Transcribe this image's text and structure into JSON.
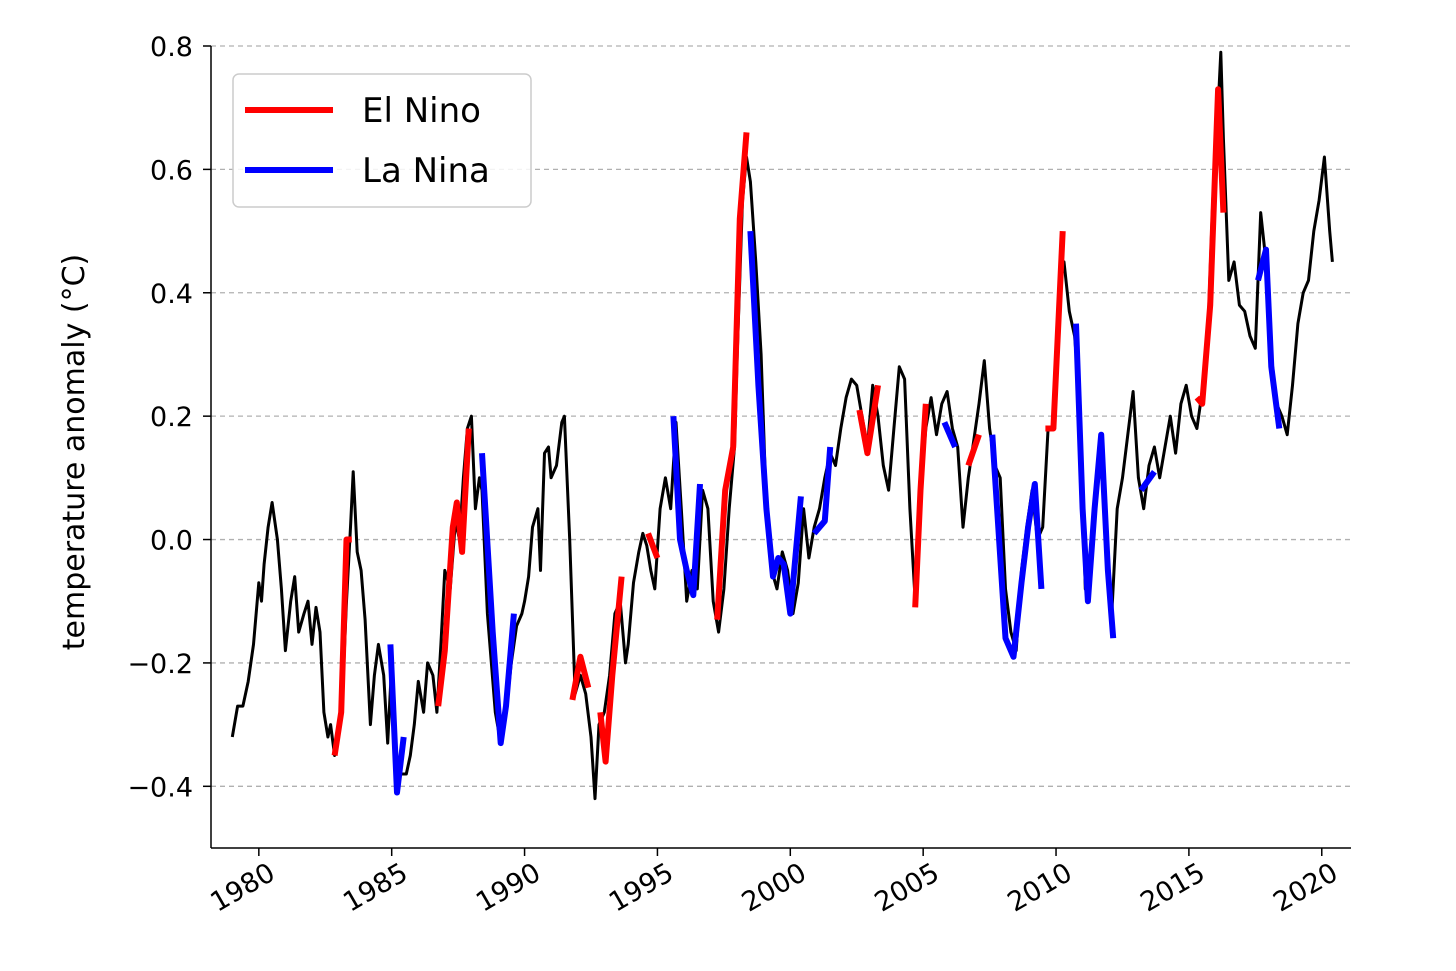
{
  "chart_data": {
    "type": "line",
    "title": "",
    "xlabel": "",
    "ylabel": "temperature anomaly (°C)",
    "xlim": [
      1978.2,
      2021.1
    ],
    "ylim": [
      -0.5,
      0.8
    ],
    "x_ticks": [
      1980,
      1985,
      1990,
      1995,
      2000,
      2005,
      2010,
      2015,
      2020
    ],
    "y_ticks": [
      -0.4,
      -0.2,
      0.0,
      0.2,
      0.4,
      0.6,
      0.8
    ],
    "y_tick_labels": [
      "−0.4",
      "−0.2",
      "0.0",
      "0.2",
      "0.4",
      "0.6",
      "0.8"
    ],
    "grid": "horizontal-dashed",
    "legend_position": "top-left",
    "colors": {
      "base": "#000000",
      "el_nino": "#ff0000",
      "la_nina": "#0000ff",
      "grid": "#b0b0b0"
    },
    "base_series": {
      "name": "",
      "points": [
        [
          1979.0,
          -0.32
        ],
        [
          1979.2,
          -0.27
        ],
        [
          1979.4,
          -0.27
        ],
        [
          1979.6,
          -0.23
        ],
        [
          1979.8,
          -0.17
        ],
        [
          1980.0,
          -0.07
        ],
        [
          1980.1,
          -0.1
        ],
        [
          1980.2,
          -0.04
        ],
        [
          1980.35,
          0.02
        ],
        [
          1980.5,
          0.06
        ],
        [
          1980.7,
          0.0
        ],
        [
          1980.85,
          -0.08
        ],
        [
          1981.0,
          -0.18
        ],
        [
          1981.2,
          -0.1
        ],
        [
          1981.35,
          -0.06
        ],
        [
          1981.5,
          -0.15
        ],
        [
          1981.7,
          -0.12
        ],
        [
          1981.85,
          -0.1
        ],
        [
          1982.0,
          -0.17
        ],
        [
          1982.15,
          -0.11
        ],
        [
          1982.3,
          -0.15
        ],
        [
          1982.45,
          -0.28
        ],
        [
          1982.6,
          -0.32
        ],
        [
          1982.7,
          -0.3
        ],
        [
          1982.85,
          -0.35
        ],
        [
          1983.0,
          -0.32
        ],
        [
          1983.15,
          -0.25
        ],
        [
          1983.3,
          -0.1
        ],
        [
          1983.45,
          0.02
        ],
        [
          1983.55,
          0.11
        ],
        [
          1983.7,
          -0.02
        ],
        [
          1983.85,
          -0.05
        ],
        [
          1984.0,
          -0.13
        ],
        [
          1984.2,
          -0.3
        ],
        [
          1984.35,
          -0.22
        ],
        [
          1984.5,
          -0.17
        ],
        [
          1984.7,
          -0.22
        ],
        [
          1984.85,
          -0.33
        ],
        [
          1985.0,
          -0.2
        ],
        [
          1985.15,
          -0.4
        ],
        [
          1985.35,
          -0.38
        ],
        [
          1985.55,
          -0.38
        ],
        [
          1985.7,
          -0.35
        ],
        [
          1985.85,
          -0.3
        ],
        [
          1986.0,
          -0.23
        ],
        [
          1986.2,
          -0.28
        ],
        [
          1986.35,
          -0.2
        ],
        [
          1986.55,
          -0.22
        ],
        [
          1986.7,
          -0.28
        ],
        [
          1986.85,
          -0.17
        ],
        [
          1987.0,
          -0.05
        ],
        [
          1987.2,
          -0.08
        ],
        [
          1987.4,
          0.03
        ],
        [
          1987.55,
          0.0
        ],
        [
          1987.7,
          0.1
        ],
        [
          1987.85,
          0.18
        ],
        [
          1988.0,
          0.2
        ],
        [
          1988.15,
          0.05
        ],
        [
          1988.3,
          0.1
        ],
        [
          1988.4,
          0.08
        ],
        [
          1988.6,
          -0.12
        ],
        [
          1988.9,
          -0.28
        ],
        [
          1989.1,
          -0.33
        ],
        [
          1989.3,
          -0.28
        ],
        [
          1989.5,
          -0.2
        ],
        [
          1989.7,
          -0.14
        ],
        [
          1989.9,
          -0.12
        ],
        [
          1990.0,
          -0.1
        ],
        [
          1990.15,
          -0.06
        ],
        [
          1990.3,
          0.02
        ],
        [
          1990.5,
          0.05
        ],
        [
          1990.6,
          -0.05
        ],
        [
          1990.75,
          0.14
        ],
        [
          1990.9,
          0.15
        ],
        [
          1991.0,
          0.1
        ],
        [
          1991.2,
          0.12
        ],
        [
          1991.4,
          0.19
        ],
        [
          1991.5,
          0.2
        ],
        [
          1991.7,
          0.0
        ],
        [
          1991.9,
          -0.25
        ],
        [
          1992.1,
          -0.22
        ],
        [
          1992.3,
          -0.25
        ],
        [
          1992.5,
          -0.32
        ],
        [
          1992.65,
          -0.42
        ],
        [
          1992.8,
          -0.3
        ],
        [
          1993.0,
          -0.28
        ],
        [
          1993.2,
          -0.22
        ],
        [
          1993.4,
          -0.12
        ],
        [
          1993.6,
          -0.1
        ],
        [
          1993.8,
          -0.2
        ],
        [
          1993.9,
          -0.17
        ],
        [
          1994.1,
          -0.07
        ],
        [
          1994.3,
          -0.02
        ],
        [
          1994.45,
          0.01
        ],
        [
          1994.6,
          -0.01
        ],
        [
          1994.75,
          -0.05
        ],
        [
          1994.9,
          -0.08
        ],
        [
          1995.1,
          0.05
        ],
        [
          1995.3,
          0.1
        ],
        [
          1995.5,
          0.05
        ],
        [
          1995.7,
          0.19
        ],
        [
          1995.9,
          0.05
        ],
        [
          1996.1,
          -0.1
        ],
        [
          1996.3,
          -0.05
        ],
        [
          1996.5,
          -0.08
        ],
        [
          1996.7,
          0.08
        ],
        [
          1996.9,
          0.05
        ],
        [
          1997.1,
          -0.1
        ],
        [
          1997.3,
          -0.15
        ],
        [
          1997.5,
          -0.08
        ],
        [
          1997.7,
          0.05
        ],
        [
          1997.9,
          0.15
        ],
        [
          1998.0,
          0.3
        ],
        [
          1998.2,
          0.55
        ],
        [
          1998.35,
          0.62
        ],
        [
          1998.5,
          0.58
        ],
        [
          1998.7,
          0.45
        ],
        [
          1998.9,
          0.3
        ],
        [
          1999.1,
          0.05
        ],
        [
          1999.3,
          -0.05
        ],
        [
          1999.5,
          -0.08
        ],
        [
          1999.7,
          -0.02
        ],
        [
          1999.9,
          -0.05
        ],
        [
          2000.1,
          -0.12
        ],
        [
          2000.3,
          -0.07
        ],
        [
          2000.5,
          0.05
        ],
        [
          2000.7,
          -0.03
        ],
        [
          2000.9,
          0.02
        ],
        [
          2001.1,
          0.05
        ],
        [
          2001.3,
          0.1
        ],
        [
          2001.5,
          0.14
        ],
        [
          2001.7,
          0.12
        ],
        [
          2001.9,
          0.18
        ],
        [
          2002.1,
          0.23
        ],
        [
          2002.3,
          0.26
        ],
        [
          2002.5,
          0.25
        ],
        [
          2002.7,
          0.2
        ],
        [
          2002.9,
          0.15
        ],
        [
          2003.1,
          0.25
        ],
        [
          2003.3,
          0.2
        ],
        [
          2003.5,
          0.12
        ],
        [
          2003.7,
          0.08
        ],
        [
          2003.9,
          0.18
        ],
        [
          2004.1,
          0.28
        ],
        [
          2004.3,
          0.26
        ],
        [
          2004.5,
          0.05
        ],
        [
          2004.7,
          -0.1
        ],
        [
          2004.9,
          0.08
        ],
        [
          2005.1,
          0.18
        ],
        [
          2005.3,
          0.23
        ],
        [
          2005.5,
          0.17
        ],
        [
          2005.7,
          0.22
        ],
        [
          2005.9,
          0.24
        ],
        [
          2006.1,
          0.18
        ],
        [
          2006.3,
          0.15
        ],
        [
          2006.5,
          0.02
        ],
        [
          2006.7,
          0.1
        ],
        [
          2006.9,
          0.16
        ],
        [
          2007.1,
          0.22
        ],
        [
          2007.3,
          0.29
        ],
        [
          2007.5,
          0.18
        ],
        [
          2007.7,
          0.12
        ],
        [
          2007.9,
          0.1
        ],
        [
          2008.1,
          -0.08
        ],
        [
          2008.3,
          -0.15
        ],
        [
          2008.5,
          -0.18
        ],
        [
          2008.7,
          -0.05
        ],
        [
          2008.9,
          0.02
        ],
        [
          2009.1,
          0.08
        ],
        [
          2009.3,
          0.0
        ],
        [
          2009.5,
          0.02
        ],
        [
          2009.7,
          0.18
        ],
        [
          2009.9,
          0.18
        ],
        [
          2010.1,
          0.4
        ],
        [
          2010.3,
          0.45
        ],
        [
          2010.5,
          0.37
        ],
        [
          2010.7,
          0.33
        ],
        [
          2010.9,
          0.22
        ],
        [
          2011.1,
          -0.08
        ],
        [
          2011.3,
          -0.05
        ],
        [
          2011.5,
          0.08
        ],
        [
          2011.7,
          0.17
        ],
        [
          2011.9,
          0.0
        ],
        [
          2012.1,
          -0.12
        ],
        [
          2012.3,
          0.05
        ],
        [
          2012.5,
          0.1
        ],
        [
          2012.7,
          0.17
        ],
        [
          2012.9,
          0.24
        ],
        [
          2013.1,
          0.1
        ],
        [
          2013.3,
          0.05
        ],
        [
          2013.5,
          0.12
        ],
        [
          2013.7,
          0.15
        ],
        [
          2013.9,
          0.1
        ],
        [
          2014.1,
          0.15
        ],
        [
          2014.3,
          0.2
        ],
        [
          2014.5,
          0.14
        ],
        [
          2014.7,
          0.22
        ],
        [
          2014.9,
          0.25
        ],
        [
          2015.1,
          0.2
        ],
        [
          2015.3,
          0.18
        ],
        [
          2015.5,
          0.24
        ],
        [
          2015.7,
          0.32
        ],
        [
          2015.9,
          0.55
        ],
        [
          2016.1,
          0.7
        ],
        [
          2016.2,
          0.79
        ],
        [
          2016.3,
          0.65
        ],
        [
          2016.5,
          0.42
        ],
        [
          2016.7,
          0.45
        ],
        [
          2016.9,
          0.38
        ],
        [
          2017.1,
          0.37
        ],
        [
          2017.3,
          0.33
        ],
        [
          2017.5,
          0.31
        ],
        [
          2017.7,
          0.53
        ],
        [
          2017.9,
          0.45
        ],
        [
          2018.1,
          0.3
        ],
        [
          2018.3,
          0.22
        ],
        [
          2018.5,
          0.2
        ],
        [
          2018.7,
          0.17
        ],
        [
          2018.9,
          0.25
        ],
        [
          2019.1,
          0.35
        ],
        [
          2019.3,
          0.4
        ],
        [
          2019.5,
          0.42
        ],
        [
          2019.7,
          0.5
        ],
        [
          2019.9,
          0.55
        ],
        [
          2020.1,
          0.62
        ],
        [
          2020.3,
          0.5
        ],
        [
          2020.4,
          0.45
        ]
      ]
    },
    "highlight_series": [
      {
        "name": "El Nino",
        "segments": [
          [
            [
              1982.85,
              -0.35
            ],
            [
              1983.1,
              -0.28
            ],
            [
              1983.3,
              0.0
            ],
            [
              1983.5,
              0.0
            ]
          ],
          [
            [
              1986.75,
              -0.27
            ],
            [
              1987.0,
              -0.18
            ],
            [
              1987.3,
              0.02
            ],
            [
              1987.45,
              0.06
            ],
            [
              1987.65,
              -0.02
            ],
            [
              1987.9,
              0.18
            ]
          ],
          [
            [
              1991.8,
              -0.26
            ],
            [
              1992.1,
              -0.19
            ],
            [
              1992.4,
              -0.24
            ]
          ],
          [
            [
              1992.85,
              -0.28
            ],
            [
              1993.05,
              -0.36
            ],
            [
              1993.3,
              -0.22
            ],
            [
              1993.65,
              -0.06
            ]
          ],
          [
            [
              1994.65,
              0.01
            ],
            [
              1995.0,
              -0.03
            ]
          ],
          [
            [
              1997.25,
              -0.13
            ],
            [
              1997.55,
              0.08
            ],
            [
              1997.85,
              0.15
            ],
            [
              1998.1,
              0.52
            ],
            [
              1998.35,
              0.66
            ]
          ],
          [
            [
              2002.6,
              0.21
            ],
            [
              2002.9,
              0.14
            ],
            [
              2003.3,
              0.25
            ]
          ],
          [
            [
              2004.7,
              -0.11
            ],
            [
              2004.9,
              0.08
            ],
            [
              2005.1,
              0.22
            ]
          ],
          [
            [
              2006.7,
              0.12
            ],
            [
              2007.1,
              0.17
            ]
          ],
          [
            [
              2009.6,
              0.18
            ],
            [
              2009.9,
              0.18
            ],
            [
              2010.25,
              0.5
            ]
          ],
          [
            [
              2015.3,
              0.23
            ],
            [
              2015.5,
              0.22
            ],
            [
              2015.8,
              0.38
            ],
            [
              2016.1,
              0.73
            ],
            [
              2016.3,
              0.53
            ]
          ]
        ]
      },
      {
        "name": "La Nina",
        "segments": [
          [
            [
              1984.95,
              -0.17
            ],
            [
              1985.2,
              -0.41
            ],
            [
              1985.45,
              -0.32
            ]
          ],
          [
            [
              1988.4,
              0.14
            ],
            [
              1988.8,
              -0.15
            ],
            [
              1989.1,
              -0.33
            ],
            [
              1989.3,
              -0.27
            ],
            [
              1989.6,
              -0.12
            ]
          ],
          [
            [
              1995.6,
              0.2
            ],
            [
              1995.85,
              0.0
            ],
            [
              1996.1,
              -0.05
            ],
            [
              1996.35,
              -0.09
            ],
            [
              1996.6,
              0.09
            ]
          ],
          [
            [
              1998.5,
              0.5
            ],
            [
              1998.8,
              0.25
            ],
            [
              1999.1,
              0.05
            ],
            [
              1999.35,
              -0.06
            ],
            [
              1999.55,
              -0.03
            ],
            [
              1999.75,
              -0.04
            ],
            [
              2000.0,
              -0.12
            ],
            [
              2000.4,
              0.07
            ]
          ],
          [
            [
              2000.9,
              0.01
            ],
            [
              2001.3,
              0.03
            ],
            [
              2001.5,
              0.15
            ]
          ],
          [
            [
              2005.8,
              0.19
            ],
            [
              2006.2,
              0.15
            ]
          ],
          [
            [
              2007.6,
              0.17
            ],
            [
              2008.1,
              -0.16
            ],
            [
              2008.4,
              -0.19
            ],
            [
              2008.7,
              -0.07
            ],
            [
              2008.95,
              0.02
            ],
            [
              2009.2,
              0.09
            ],
            [
              2009.45,
              -0.08
            ]
          ],
          [
            [
              2010.75,
              0.35
            ],
            [
              2011.0,
              0.05
            ],
            [
              2011.2,
              -0.1
            ],
            [
              2011.45,
              0.05
            ],
            [
              2011.7,
              0.17
            ],
            [
              2011.95,
              -0.05
            ],
            [
              2012.15,
              -0.16
            ]
          ],
          [
            [
              2013.2,
              0.08
            ],
            [
              2013.7,
              0.11
            ]
          ],
          [
            [
              2017.6,
              0.42
            ],
            [
              2017.9,
              0.47
            ],
            [
              2018.1,
              0.28
            ],
            [
              2018.4,
              0.18
            ]
          ]
        ]
      }
    ]
  }
}
